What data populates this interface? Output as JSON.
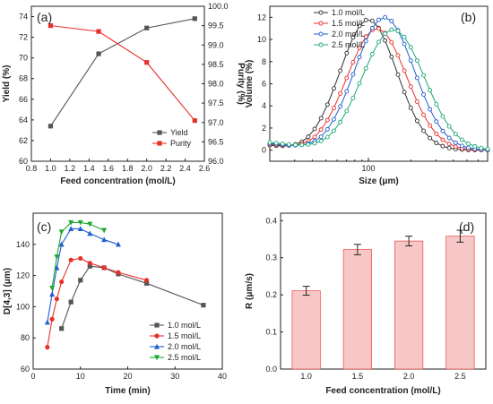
{
  "chart_data": [
    {
      "panel": "(a)",
      "type": "line",
      "xlabel": "Feed concentration (mol/L)",
      "ylabel": "Yield (%)",
      "ylabel_right": "Purity (%)",
      "xlim": [
        0.8,
        2.6
      ],
      "xticks": [
        "0.8",
        "1.0",
        "1.2",
        "1.4",
        "1.6",
        "1.8",
        "2.0",
        "2.2",
        "2.4",
        "2.6"
      ],
      "ylim": [
        60,
        75
      ],
      "yticks": [
        "60",
        "62",
        "64",
        "66",
        "68",
        "70",
        "72",
        "74"
      ],
      "ylim_right": [
        96.0,
        100.0
      ],
      "yticks_right": [
        "96.0",
        "96.5",
        "97.0",
        "97.5",
        "98.0",
        "98.5",
        "99.0",
        "99.5",
        "100.0"
      ],
      "x": [
        1.0,
        1.5,
        2.0,
        2.5
      ],
      "series": [
        {
          "name": "Yield",
          "axis": "left",
          "color": "#555555",
          "marker": "square",
          "values": [
            63.4,
            70.4,
            72.9,
            73.8
          ]
        },
        {
          "name": "Purity",
          "axis": "right",
          "color": "#e8302a",
          "marker": "square",
          "values": [
            99.5,
            99.35,
            98.55,
            97.05
          ]
        }
      ],
      "legend": "bottom-right"
    },
    {
      "panel": "(b)",
      "type": "line",
      "xlabel": "Size (μm)",
      "ylabel": "Volume (%)",
      "xscale": "log",
      "xlim": [
        20,
        700
      ],
      "xticks": [
        "100"
      ],
      "ylim": [
        -1,
        13
      ],
      "yticks": [
        "0",
        "2",
        "4",
        "6",
        "8",
        "10",
        "12"
      ],
      "series": [
        {
          "name": "1.0 mol/L",
          "color": "#333333",
          "marker": "circle-open",
          "peak_x": 100,
          "peak_y": 11.8,
          "sigma_log10": 0.2
        },
        {
          "name": "1.5 mol/L",
          "color": "#e8302a",
          "marker": "circle-open",
          "peak_x": 115,
          "peak_y": 11.0,
          "sigma_log10": 0.21
        },
        {
          "name": "2.0 mol/L",
          "color": "#1f5fd0",
          "marker": "circle-open",
          "peak_x": 130,
          "peak_y": 12.0,
          "sigma_log10": 0.21
        },
        {
          "name": "2.5 mol/L",
          "color": "#1fa878",
          "marker": "circle-open",
          "peak_x": 150,
          "peak_y": 10.9,
          "sigma_log10": 0.22
        }
      ],
      "legend": "top-left"
    },
    {
      "panel": "(c)",
      "type": "line",
      "xlabel": "Time (min)",
      "ylabel": "D[4,3] (μm)",
      "xlim": [
        0,
        40
      ],
      "xticks": [
        "0",
        "10",
        "20",
        "30",
        "40"
      ],
      "ylim": [
        60,
        160
      ],
      "yticks": [
        "60",
        "80",
        "100",
        "120",
        "140"
      ],
      "series": [
        {
          "name": "1.0 mol/L",
          "color": "#555555",
          "marker": "square",
          "x": [
            6,
            8,
            10,
            12,
            15,
            18,
            24,
            36
          ],
          "values": [
            86,
            103,
            117,
            126,
            125,
            121,
            115,
            101
          ]
        },
        {
          "name": "1.5 mol/L",
          "color": "#e8302a",
          "marker": "circle",
          "x": [
            3,
            4,
            5,
            6,
            8,
            10,
            12,
            15,
            18,
            24
          ],
          "values": [
            74,
            92,
            105,
            116,
            130,
            131,
            128,
            125,
            122,
            117
          ]
        },
        {
          "name": "2.0 mol/L",
          "color": "#1f5fd0",
          "marker": "triangle",
          "x": [
            3,
            4,
            5,
            6,
            8,
            10,
            12,
            15,
            18
          ],
          "values": [
            90,
            108,
            125,
            140,
            150,
            150,
            147,
            143,
            140
          ]
        },
        {
          "name": "2.5 mol/L",
          "color": "#1fa830",
          "marker": "triangle-down",
          "x": [
            4,
            5,
            6,
            8,
            10,
            12,
            15
          ],
          "values": [
            112,
            132,
            148,
            154,
            154,
            153,
            149
          ]
        }
      ],
      "legend": "bottom-right"
    },
    {
      "panel": "(d)",
      "type": "bar",
      "xlabel": "Feed concentration (mol/L)",
      "ylabel": "R (μm/s)",
      "categories": [
        "1.0",
        "1.5",
        "2.0",
        "2.5"
      ],
      "values": [
        0.211,
        0.322,
        0.345,
        0.358
      ],
      "errors": [
        0.012,
        0.014,
        0.013,
        0.016
      ],
      "ylim": [
        0.0,
        0.42
      ],
      "yticks": [
        "0.0",
        "0.1",
        "0.2",
        "0.3",
        "0.4"
      ],
      "color": "#f7c6c6",
      "edge_color": "#e8302a"
    }
  ]
}
